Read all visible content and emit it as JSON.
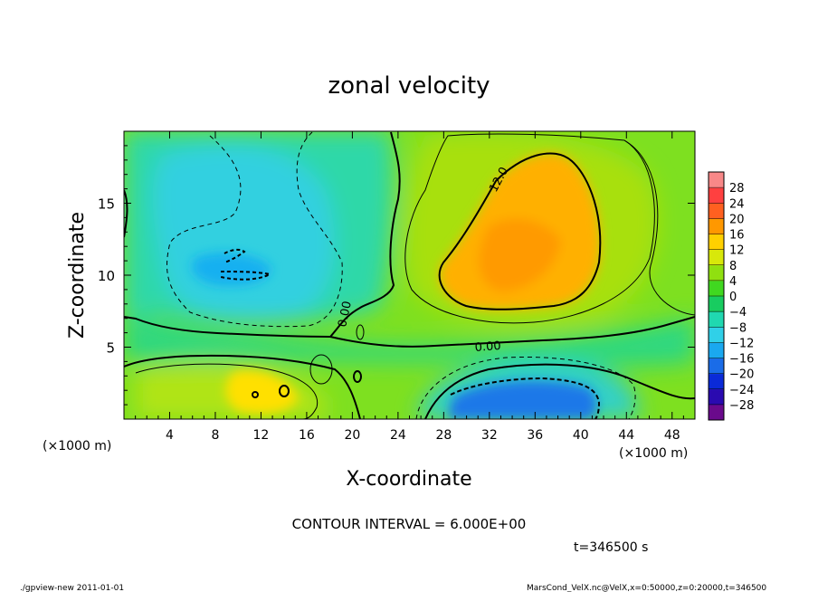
{
  "chart_data": {
    "type": "heatmap",
    "title": "zonal velocity",
    "xlabel": "X-coordinate",
    "ylabel": "Z-coordinate",
    "x_unit_label": "(×1000 m)",
    "z_unit_label": "(×1000 m)",
    "xlim": [
      0,
      50
    ],
    "ylim": [
      0,
      20
    ],
    "x_ticks": [
      4,
      8,
      12,
      16,
      20,
      24,
      28,
      32,
      36,
      40,
      44,
      48
    ],
    "x_tick_labels": [
      "4",
      "8",
      "12",
      "16",
      "20",
      "24",
      "28",
      "32",
      "36",
      "40",
      "44",
      "48"
    ],
    "y_ticks": [
      5,
      10,
      15
    ],
    "y_tick_labels": [
      "5",
      "10",
      "15"
    ],
    "contour_interval_text": "CONTOUR INTERVAL = 6.000E+00",
    "contour_labels": [
      "12.0",
      "0.00",
      "0.00"
    ],
    "time_text": "t=346500 s",
    "colorbar": {
      "levels": [
        -28,
        -24,
        -20,
        -16,
        -12,
        -8,
        -4,
        0,
        4,
        8,
        12,
        16,
        20,
        24,
        28
      ],
      "labels": [
        "28",
        "24",
        "20",
        "16",
        "12",
        "8",
        "4",
        "0",
        "−4",
        "−8",
        "−12",
        "−16",
        "−20",
        "−24",
        "−28"
      ],
      "colors": [
        "#6a0a8c",
        "#2a0ab0",
        "#0a2ad8",
        "#1a6ce8",
        "#1aa8f0",
        "#30d0e8",
        "#20d8b0",
        "#18cc60",
        "#40d820",
        "#90e010",
        "#d8e80a",
        "#ffd000",
        "#ff9800",
        "#ff6020",
        "#ff4040",
        "#f88888"
      ]
    },
    "features": [
      {
        "label": "positive maximum",
        "x": 34,
        "z": 12,
        "value": 16
      },
      {
        "label": "negative minimum upper-left",
        "x": 10,
        "z": 10,
        "value": -12
      },
      {
        "label": "negative minimum lower",
        "x": 34,
        "z": 1.5,
        "value": -16
      },
      {
        "label": "positive lower-left",
        "x": 12,
        "z": 2,
        "value": 8
      }
    ]
  },
  "footer": {
    "left": "./gpview-new   2011-01-01",
    "right": "MarsCond_VelX.nc@VelX,x=0:50000,z=0:20000,t=346500"
  }
}
